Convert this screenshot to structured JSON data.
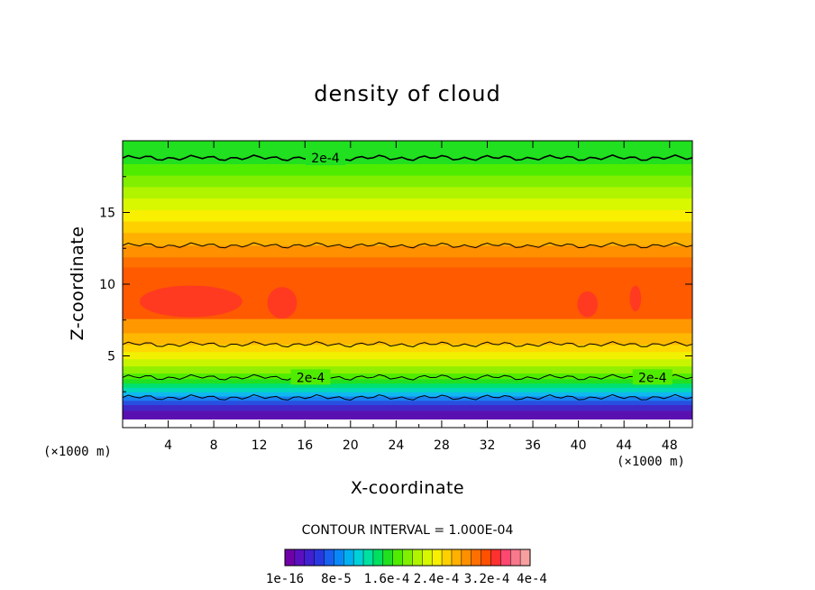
{
  "chart_data": {
    "type": "contour",
    "title": "density of cloud",
    "xlabel": "X-coordinate",
    "ylabel": "Z-coordinate",
    "x_unit": "(×1000 m)",
    "z_unit": "(×1000 m)",
    "xlim": [
      0,
      50
    ],
    "ylim": [
      0,
      20
    ],
    "x_ticks": [
      4,
      8,
      12,
      16,
      20,
      24,
      28,
      32,
      36,
      40,
      44,
      48
    ],
    "y_ticks": [
      5,
      10,
      15
    ],
    "contour_interval_text": "CONTOUR INTERVAL = 1.000E-04",
    "contour_labels": [
      {
        "text": "2e-4",
        "x": 17.8,
        "z": 18.8
      },
      {
        "text": "2e-4",
        "x": 16.5,
        "z": 3.5
      },
      {
        "text": "2e-4",
        "x": 46.5,
        "z": 3.5
      }
    ],
    "contour_lines_z": [
      18.8,
      12.7,
      5.8,
      3.5,
      2.1
    ],
    "colorbar": {
      "labels": [
        "1e-16",
        "8e-5",
        "1.6e-4",
        "2.4e-4",
        "3.2e-4",
        "4e-4"
      ],
      "colors": [
        "#7000a8",
        "#5a10c0",
        "#4020d0",
        "#2838e0",
        "#1860f0",
        "#0888f8",
        "#00b0f0",
        "#00d0d8",
        "#00e0a0",
        "#00e060",
        "#20e020",
        "#50ec00",
        "#80f000",
        "#b0f400",
        "#d8f800",
        "#f8f000",
        "#ffd000",
        "#ffb000",
        "#ff9000",
        "#ff7000",
        "#ff5000",
        "#ff3030",
        "#ff4870",
        "#f8788c",
        "#f8a0a0"
      ]
    }
  }
}
